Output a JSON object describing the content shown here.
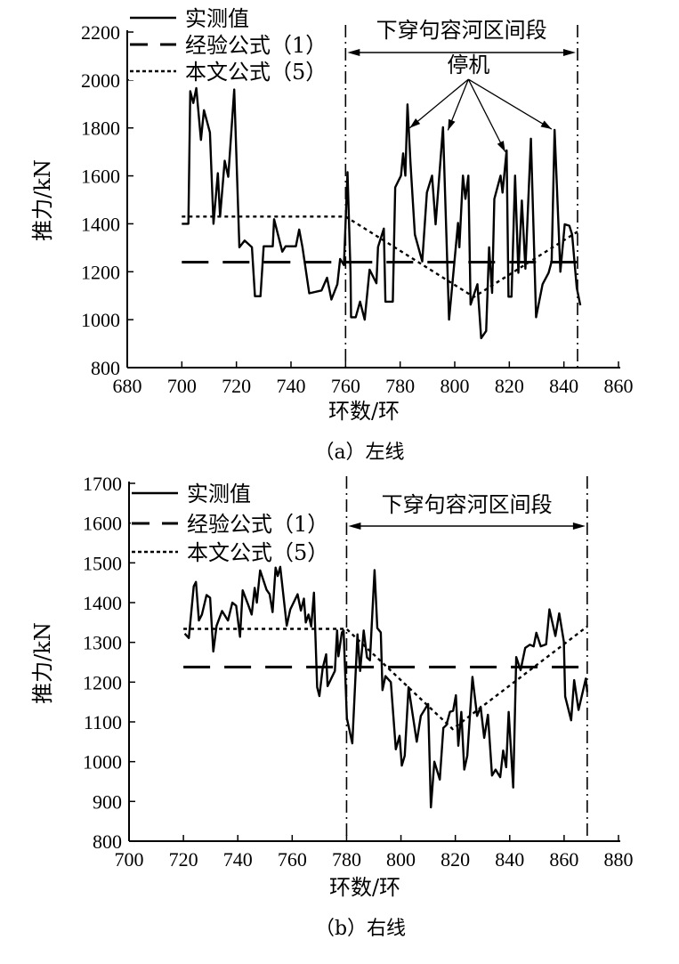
{
  "chart_data": [
    {
      "type": "line",
      "id": "a",
      "caption": "（a）左线",
      "xlabel": "环数/环",
      "ylabel": "推力/kN",
      "xlim": [
        680,
        860
      ],
      "ylim": [
        800,
        2200
      ],
      "xticks": [
        "680",
        "700",
        "720",
        "740",
        "760",
        "780",
        "800",
        "820",
        "840",
        "860"
      ],
      "yticks": [
        "800",
        "1000",
        "1200",
        "1400",
        "1600",
        "1800",
        "2000",
        "2200"
      ],
      "legend": [
        "实测值",
        "经验公式（1）",
        "本文公式（5）"
      ],
      "legend_position": "top-left",
      "section_label": "下穿句容河区间段",
      "section_range": [
        760,
        845
      ],
      "annotation": {
        "text": "停机",
        "at": [
          805,
          2040
        ],
        "targets": [
          [
            783.5,
            1800
          ],
          [
            797.5,
            1790
          ],
          [
            818.5,
            1700
          ],
          [
            835.5,
            1795
          ]
        ]
      },
      "series": [
        {
          "name": "实测值",
          "points": [
            [
              700,
              1400
            ],
            [
              702.4,
              1400
            ],
            [
              703.1,
              1953
            ],
            [
              704.2,
              1904
            ],
            [
              705.3,
              1966
            ],
            [
              707,
              1750
            ],
            [
              708.1,
              1874
            ],
            [
              710.3,
              1781
            ],
            [
              711.6,
              1400
            ],
            [
              713.2,
              1611
            ],
            [
              714,
              1430
            ],
            [
              715.7,
              1663
            ],
            [
              717,
              1596
            ],
            [
              719.2,
              1960
            ],
            [
              721.1,
              1302
            ],
            [
              723,
              1330
            ],
            [
              725.7,
              1302
            ],
            [
              726.8,
              1098
            ],
            [
              728.8,
              1098
            ],
            [
              730,
              1306
            ],
            [
              733.3,
              1306
            ],
            [
              733.8,
              1419
            ],
            [
              736.8,
              1284
            ],
            [
              738,
              1306
            ],
            [
              741.8,
              1306
            ],
            [
              743,
              1376
            ],
            [
              744.2,
              1302
            ],
            [
              746.7,
              1110
            ],
            [
              751.2,
              1122
            ],
            [
              753.2,
              1175
            ],
            [
              754.8,
              1084
            ],
            [
              757,
              1148
            ],
            [
              758,
              1253
            ],
            [
              759.4,
              1228
            ],
            [
              760.7,
              1615
            ],
            [
              761.8,
              1196
            ],
            [
              762,
              1010
            ],
            [
              763.7,
              1010
            ],
            [
              765.3,
              1075
            ],
            [
              767,
              1000
            ],
            [
              768.8,
              1209
            ],
            [
              771.3,
              1152
            ],
            [
              771.9,
              1303
            ],
            [
              774,
              1380
            ],
            [
              774.6,
              1075
            ],
            [
              777.3,
              1075
            ],
            [
              778.2,
              1552
            ],
            [
              780.3,
              1601
            ],
            [
              781.1,
              1694
            ],
            [
              781.9,
              1601
            ],
            [
              782.7,
              1898
            ],
            [
              783.8,
              1651
            ],
            [
              785.4,
              1355
            ],
            [
              788.1,
              1243
            ],
            [
              789.8,
              1530
            ],
            [
              791.7,
              1601
            ],
            [
              793,
              1398
            ],
            [
              795.7,
              1803
            ],
            [
              797.9,
              1000
            ],
            [
              801.2,
              1404
            ],
            [
              801.7,
              1302
            ],
            [
              803,
              1601
            ],
            [
              803.9,
              1504
            ],
            [
              805,
              1601
            ],
            [
              805.8,
              1063
            ],
            [
              808.3,
              1148
            ],
            [
              809.7,
              923
            ],
            [
              811.5,
              953
            ],
            [
              812.6,
              1302
            ],
            [
              813.7,
              1112
            ],
            [
              814.5,
              1504
            ],
            [
              816.8,
              1601
            ],
            [
              817.5,
              1530
            ],
            [
              819,
              1706
            ],
            [
              819.7,
              1096
            ],
            [
              820.8,
              1096
            ],
            [
              822.1,
              1601
            ],
            [
              823.3,
              1196
            ],
            [
              824.6,
              1497
            ],
            [
              825.9,
              1213
            ],
            [
              827.9,
              1755
            ],
            [
              829.8,
              1010
            ],
            [
              832.2,
              1148
            ],
            [
              834.4,
              1196
            ],
            [
              835.5,
              1243
            ],
            [
              836.6,
              1792
            ],
            [
              838.7,
              1200
            ],
            [
              840.3,
              1398
            ],
            [
              842,
              1392
            ],
            [
              843,
              1355
            ],
            [
              844.7,
              1133
            ],
            [
              846,
              1060
            ]
          ]
        },
        {
          "name": "经验公式（1）",
          "points": [
            [
              700,
              1240
            ],
            [
              845,
              1240
            ]
          ]
        },
        {
          "name": "本文公式（5）",
          "points": [
            [
              700,
              1430
            ],
            [
              760,
              1430
            ],
            [
              807,
              1095
            ],
            [
              845,
              1367
            ]
          ]
        }
      ]
    },
    {
      "type": "line",
      "id": "b",
      "caption": "（b）右线",
      "xlabel": "环数/环",
      "ylabel": "推力/kN",
      "xlim": [
        700,
        880
      ],
      "ylim": [
        800,
        1700
      ],
      "xticks": [
        "700",
        "720",
        "740",
        "760",
        "780",
        "800",
        "820",
        "840",
        "860",
        "880"
      ],
      "yticks": [
        "800",
        "900",
        "1000",
        "1100",
        "1200",
        "1300",
        "1400",
        "1500",
        "1600",
        "1700"
      ],
      "legend": [
        "实测值",
        "经验公式（1）",
        "本文公式（5）"
      ],
      "legend_position": "top-left",
      "section_label": "下穿句容河区间段",
      "section_range": [
        780,
        868.5
      ],
      "series": [
        {
          "name": "实测值",
          "points": [
            [
              720.5,
              1322
            ],
            [
              722,
              1311
            ],
            [
              723.8,
              1441
            ],
            [
              724.6,
              1452
            ],
            [
              725.7,
              1355
            ],
            [
              726.8,
              1370
            ],
            [
              728.5,
              1419
            ],
            [
              729.8,
              1412
            ],
            [
              731,
              1277
            ],
            [
              732.2,
              1342
            ],
            [
              734.2,
              1379
            ],
            [
              736.4,
              1355
            ],
            [
              738,
              1400
            ],
            [
              739.4,
              1392
            ],
            [
              740.8,
              1314
            ],
            [
              741.8,
              1431
            ],
            [
              743.8,
              1395
            ],
            [
              745.1,
              1370
            ],
            [
              746.2,
              1437
            ],
            [
              747,
              1400
            ],
            [
              748.2,
              1481
            ],
            [
              750.6,
              1432
            ],
            [
              751.7,
              1421
            ],
            [
              752.8,
              1376
            ],
            [
              753.9,
              1488
            ],
            [
              754.7,
              1467
            ],
            [
              755.6,
              1490
            ],
            [
              758,
              1342
            ],
            [
              759.3,
              1383
            ],
            [
              762,
              1421
            ],
            [
              763.2,
              1380
            ],
            [
              764.3,
              1410
            ],
            [
              765,
              1350
            ],
            [
              766,
              1370
            ],
            [
              767,
              1340
            ],
            [
              768,
              1425
            ],
            [
              769.2,
              1187
            ],
            [
              770,
              1165
            ],
            [
              771.2,
              1235
            ],
            [
              772.5,
              1270
            ],
            [
              773,
              1190
            ],
            [
              775.7,
              1228
            ],
            [
              776.5,
              1330
            ],
            [
              777,
              1265
            ],
            [
              778.3,
              1325
            ],
            [
              778.9,
              1330
            ],
            [
              780.1,
              1109
            ],
            [
              782.1,
              1046
            ],
            [
              784,
              1320
            ],
            [
              785,
              1228
            ],
            [
              786.3,
              1330
            ],
            [
              787.5,
              1262
            ],
            [
              788.6,
              1255
            ],
            [
              790.3,
              1482
            ],
            [
              791.3,
              1336
            ],
            [
              792.6,
              1325
            ],
            [
              793.2,
              1180
            ],
            [
              794.3,
              1215
            ],
            [
              796.3,
              1200
            ],
            [
              798.1,
              1031
            ],
            [
              799.5,
              1065
            ],
            [
              800.3,
              990
            ],
            [
              801.4,
              1015
            ],
            [
              802.8,
              1187
            ],
            [
              805.8,
              1050
            ],
            [
              807.3,
              1115
            ],
            [
              810,
              1145
            ],
            [
              811,
              885
            ],
            [
              812.3,
              1000
            ],
            [
              814.3,
              955
            ],
            [
              815.6,
              1085
            ],
            [
              816.7,
              1092
            ],
            [
              818,
              1125
            ],
            [
              819.2,
              1128
            ],
            [
              820.2,
              1167
            ],
            [
              821.1,
              1040
            ],
            [
              822.2,
              1125
            ],
            [
              823.3,
              980
            ],
            [
              824.4,
              1015
            ],
            [
              826.3,
              1213
            ],
            [
              828,
              1115
            ],
            [
              829.3,
              1138
            ],
            [
              830.6,
              1060
            ],
            [
              832,
              1118
            ],
            [
              833.5,
              965
            ],
            [
              834.8,
              980
            ],
            [
              836.5,
              961
            ],
            [
              837.6,
              1028
            ],
            [
              838.7,
              986
            ],
            [
              839.6,
              1125
            ],
            [
              841.3,
              935
            ],
            [
              842.4,
              1263
            ],
            [
              844,
              1230
            ],
            [
              845.7,
              1286
            ],
            [
              847.4,
              1294
            ],
            [
              848.8,
              1290
            ],
            [
              849.8,
              1324
            ],
            [
              851.4,
              1290
            ],
            [
              853.4,
              1295
            ],
            [
              854.6,
              1383
            ],
            [
              856.8,
              1316
            ],
            [
              858.2,
              1373
            ],
            [
              859.9,
              1302
            ],
            [
              860.4,
              1164
            ],
            [
              862.6,
              1104
            ],
            [
              863.7,
              1205
            ],
            [
              865.3,
              1130
            ],
            [
              868,
              1209
            ],
            [
              868.5,
              1175
            ]
          ]
        },
        {
          "name": "经验公式（1）",
          "points": [
            [
              720,
              1238
            ],
            [
              868.5,
              1238
            ]
          ]
        },
        {
          "name": "本文公式（5）",
          "points": [
            [
              720,
              1334
            ],
            [
              780,
              1334
            ],
            [
              819,
              1082
            ],
            [
              868.5,
              1340
            ]
          ]
        }
      ]
    }
  ]
}
